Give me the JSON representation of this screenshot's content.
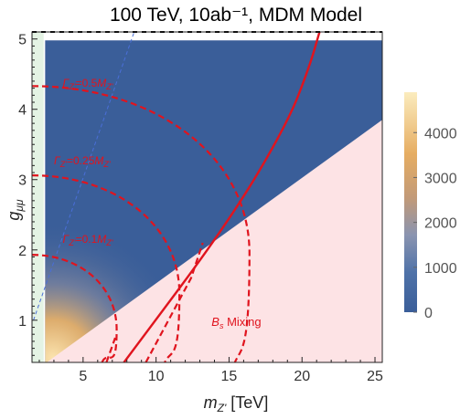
{
  "chart_data": {
    "type": "heatmap",
    "title": "100 TeV, 10ab⁻¹, MDM Model",
    "xlabel": {
      "main": "m",
      "sub": "Z'",
      "unit": " [TeV]"
    },
    "ylabel": {
      "main": "g",
      "sub": "μμ"
    },
    "xlim": [
      1.5,
      25.5
    ],
    "ylim": [
      0.4,
      5.1
    ],
    "x_ticks": [
      5,
      10,
      15,
      20,
      25
    ],
    "y_ticks": [
      1,
      2,
      3,
      4,
      5
    ],
    "colorbar": {
      "range": [
        0,
        4900
      ],
      "ticks": [
        0,
        1000,
        2000,
        3000,
        4000
      ],
      "low_color": "#3a5e99",
      "high_color": "#fbeab8"
    },
    "excluded_region": {
      "label": "B",
      "label_sub": "s",
      "label_suffix": " Mixing",
      "boundary": [
        [
          2.5,
          0.4
        ],
        [
          25.5,
          3.85
        ]
      ],
      "color": "#fde3e5"
    },
    "width_contours": [
      {
        "label_main": "Γ",
        "label_sub": "Z'",
        "label_value": "=0.1",
        "label_M": "M",
        "label_Msub": "Z'",
        "g_at_low_mass": 1.93,
        "curve_end_x": 7.3,
        "label_pos": [
          3.6,
          2.1
        ]
      },
      {
        "label_main": "Γ",
        "label_sub": "Z'",
        "label_value": "=0.25",
        "label_M": "M",
        "label_Msub": "Z'",
        "g_at_low_mass": 3.06,
        "curve_end_x": 11.6,
        "label_pos": [
          3.0,
          3.22
        ]
      },
      {
        "label_main": "Γ",
        "label_sub": "Z'",
        "label_value": "=0.5",
        "label_M": "M",
        "label_Msub": "Z'",
        "g_at_low_mass": 4.33,
        "curve_end_x": 16.4,
        "label_pos": [
          3.6,
          4.32
        ]
      }
    ],
    "solid_contour": {
      "points": [
        [
          7.8,
          0.4
        ],
        [
          15.0,
          2.4
        ],
        [
          19.0,
          3.8
        ],
        [
          20.5,
          4.6
        ],
        [
          21.2,
          5.1
        ]
      ],
      "color": "#e0141e"
    },
    "dashed_contours_lower": [
      {
        "points": [
          [
            6.6,
            0.4
          ],
          [
            7.2,
            0.75
          ]
        ]
      },
      {
        "points": [
          [
            9.3,
            0.4
          ],
          [
            12.4,
            1.6
          ],
          [
            13.2,
            2.1
          ]
        ]
      }
    ],
    "blue_line": {
      "points": [
        [
          1.6,
          1.0
        ],
        [
          8.5,
          5.1
        ]
      ],
      "color": "#4a6fd8"
    },
    "hot_spot": {
      "x": 2.7,
      "y": 0.55,
      "value": 4900
    }
  }
}
